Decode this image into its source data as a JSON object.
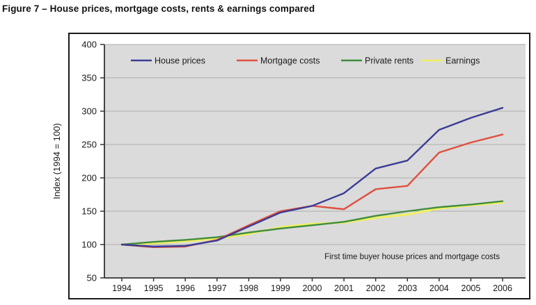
{
  "title": "Figure 7 – House prices, mortgage costs, rents & earnings compared",
  "chart_data": {
    "type": "line",
    "title": "Figure 7 – House prices, mortgage costs, rents & earnings compared",
    "ylabel": "Index (1994 = 100)",
    "xlabel": "",
    "ylim": [
      50,
      400
    ],
    "yticks": [
      50,
      100,
      150,
      200,
      250,
      300,
      350,
      400
    ],
    "grid": true,
    "legend_position": "top",
    "plot_bg_color": "#DBDBDB",
    "gridline_color": "#ACACAC",
    "axis_color": "#333333",
    "border_color": "#1A1A1A",
    "annotation": "First time buyer house prices and mortgage costs",
    "categories": [
      "1994",
      "1995",
      "1996",
      "1997",
      "1998",
      "1999",
      "2000",
      "2001",
      "2002",
      "2003",
      "2004",
      "2005",
      "2006"
    ],
    "series": [
      {
        "name": "House prices",
        "color": "#3C3C96",
        "values": [
          100,
          97,
          98,
          106,
          127,
          148,
          158,
          177,
          214,
          226,
          272,
          290,
          305
        ]
      },
      {
        "name": "Mortgage costs",
        "color": "#E04F3F",
        "values": [
          100,
          96,
          97,
          107,
          129,
          150,
          158,
          153,
          183,
          188,
          238,
          253,
          265
        ]
      },
      {
        "name": "Private rents",
        "color": "#3F8C3F",
        "values": [
          100,
          104,
          107,
          111,
          118,
          124,
          129,
          134,
          143,
          150,
          156,
          160,
          165
        ]
      },
      {
        "name": "Earnings",
        "color": "#F0F060",
        "values": [
          100,
          102,
          105,
          109,
          116,
          126,
          131,
          133,
          140,
          145,
          154,
          159,
          163
        ]
      }
    ]
  }
}
